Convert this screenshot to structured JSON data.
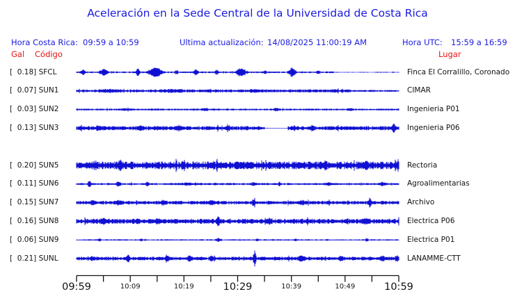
{
  "title": "Aceleración en la Sede Central de la Universidad de Costa Rica",
  "header": {
    "hora_cr_label": "Hora Costa Rica:",
    "hora_cr_value": "09:59 a 10:59",
    "update_label": "Ultima actualización:",
    "update_value": "14/08/2025 11:00:19 AM",
    "hora_utc_label": "Hora UTC:",
    "hora_utc_value": "15:59 a 16:59"
  },
  "columns": {
    "gal_label": "Gal",
    "codigo_label": "Código",
    "lugar_label": "Lugar"
  },
  "colors": {
    "text_blue": "#1a1ae0",
    "label_red": "#e81414",
    "trace_blue": "#1010d2",
    "axis_black": "#111111"
  },
  "chart_data": {
    "type": "line",
    "title": "Aceleración en la Sede Central de la Universidad de Costa Rica",
    "xlabel": "",
    "ylabel": "",
    "x_range_local": [
      "09:59",
      "10:59"
    ],
    "x_range_utc": [
      "15:59",
      "16:59"
    ],
    "grid": false,
    "legend": "none",
    "x_ticks": [
      {
        "label": "09:59",
        "size": "big"
      },
      {
        "label": "10:09",
        "size": "small"
      },
      {
        "label": "10:19",
        "size": "small"
      },
      {
        "label": "10:29",
        "size": "big"
      },
      {
        "label": "10:39",
        "size": "small"
      },
      {
        "label": "10:49",
        "size": "small"
      },
      {
        "label": "10:59",
        "size": "big"
      }
    ],
    "minor_tick_minutes": 5,
    "channels": [
      {
        "slot": 0,
        "gal": "0.18",
        "code": "SFCL",
        "location": "Finca El Corralillo, Coronado",
        "waveform": {
          "seed": 11,
          "base_amp": 0.9,
          "bursts": [
            [
              0.02,
              0.006,
              3.5
            ],
            [
              0.085,
              0.01,
              4.5
            ],
            [
              0.19,
              0.005,
              5.5
            ],
            [
              0.245,
              0.018,
              6.5
            ],
            [
              0.31,
              0.004,
              2.5
            ],
            [
              0.37,
              0.007,
              4
            ],
            [
              0.435,
              0.005,
              3
            ],
            [
              0.51,
              0.012,
              6
            ],
            [
              0.585,
              0.004,
              2.5
            ],
            [
              0.67,
              0.009,
              7
            ],
            [
              0.75,
              0.004,
              2
            ]
          ],
          "quiet": [
            [
              0.8,
              1.0,
              0.45
            ]
          ]
        }
      },
      {
        "slot": 1,
        "gal": "0.07",
        "code": "SUN1",
        "location": "CIMAR",
        "waveform": {
          "seed": 22,
          "base_amp": 1.6,
          "bursts": [
            [
              0.1,
              0.02,
              1.2
            ],
            [
              0.3,
              0.03,
              1.0
            ],
            [
              0.55,
              0.01,
              1.5
            ],
            [
              0.8,
              0.01,
              1.2
            ]
          ],
          "quiet": [
            [
              0.85,
              1.0,
              0.7
            ]
          ]
        }
      },
      {
        "slot": 2,
        "gal": "0.03",
        "code": "SUN2",
        "location": "Ingenieria P01",
        "waveform": {
          "seed": 33,
          "base_amp": 1.0,
          "bursts": [
            [
              0.15,
              0.02,
              0.8
            ],
            [
              0.4,
              0.01,
              1.2
            ],
            [
              0.62,
              0.008,
              1.5
            ],
            [
              0.85,
              0.01,
              1.0
            ]
          ],
          "quiet": []
        }
      },
      {
        "slot": 3,
        "gal": "0.13",
        "code": "SUN3",
        "location": "Ingenieria P06",
        "waveform": {
          "seed": 44,
          "base_amp": 2.2,
          "bursts": [
            [
              0.07,
              0.01,
              1.5
            ],
            [
              0.2,
              0.008,
              2.0
            ],
            [
              0.32,
              0.01,
              2.0
            ],
            [
              0.47,
              0.006,
              2.5
            ],
            [
              0.73,
              0.005,
              2.0
            ],
            [
              0.985,
              0.003,
              7.0
            ]
          ],
          "quiet": [
            [
              0.585,
              0.655,
              0.1
            ]
          ]
        }
      },
      {
        "slot": 5,
        "gal": "0.20",
        "code": "SUN5",
        "location": "Rectoria",
        "waveform": {
          "seed": 55,
          "base_amp": 4.0,
          "bursts": [
            [
              0.06,
              0.005,
              3.0
            ],
            [
              0.135,
              0.004,
              4.0
            ],
            [
              0.33,
              0.005,
              3.0
            ],
            [
              0.5,
              0.004,
              3.0
            ],
            [
              0.77,
              0.006,
              3.0
            ],
            [
              0.9,
              0.005,
              3.0
            ],
            [
              0.99,
              0.004,
              4.0
            ]
          ],
          "quiet": []
        }
      },
      {
        "slot": 6,
        "gal": "0.11",
        "code": "SUN6",
        "location": "Agroalimentarias",
        "waveform": {
          "seed": 66,
          "base_amp": 1.1,
          "bursts": [
            [
              0.04,
              0.005,
              4.0
            ],
            [
              0.13,
              0.006,
              3.0
            ],
            [
              0.22,
              0.005,
              2.5
            ],
            [
              0.35,
              0.03,
              1.0
            ],
            [
              0.55,
              0.006,
              2.0
            ],
            [
              0.63,
              0.005,
              2.0
            ],
            [
              0.78,
              0.01,
              1.5
            ],
            [
              0.95,
              0.008,
              2.0
            ]
          ],
          "quiet": []
        }
      },
      {
        "slot": 7,
        "gal": "0.15",
        "code": "SUN7",
        "location": "Archivo",
        "waveform": {
          "seed": 77,
          "base_amp": 1.9,
          "bursts": [
            [
              0.05,
              0.008,
              2.0
            ],
            [
              0.13,
              0.01,
              2.0
            ],
            [
              0.27,
              0.008,
              2.0
            ],
            [
              0.42,
              0.006,
              2.0
            ],
            [
              0.55,
              0.005,
              3.0
            ],
            [
              0.7,
              0.008,
              2.0
            ],
            [
              0.91,
              0.004,
              5.0
            ]
          ],
          "quiet": []
        }
      },
      {
        "slot": 8,
        "gal": "0.16",
        "code": "SUN8",
        "location": "Electrica P06",
        "waveform": {
          "seed": 88,
          "base_amp": 2.6,
          "bursts": [
            [
              0.08,
              0.01,
              2.0
            ],
            [
              0.25,
              0.008,
              2.0
            ],
            [
              0.44,
              0.004,
              5.0
            ],
            [
              0.6,
              0.006,
              2.0
            ],
            [
              0.9,
              0.01,
              2.5
            ]
          ],
          "quiet": []
        }
      },
      {
        "slot": 9,
        "gal": "0.06",
        "code": "SUN9",
        "location": "Electrica P01",
        "waveform": {
          "seed": 99,
          "base_amp": 0.7,
          "bursts": [
            [
              0.07,
              0.004,
              1.5
            ],
            [
              0.2,
              0.004,
              1.5
            ],
            [
              0.44,
              0.006,
              2.5
            ],
            [
              0.56,
              0.004,
              1.5
            ],
            [
              0.68,
              0.004,
              1.5
            ],
            [
              0.9,
              0.003,
              2.5
            ]
          ],
          "quiet": []
        }
      },
      {
        "slot": 10,
        "gal": "0.21",
        "code": "SUNL",
        "location": "LANAMME-CTT",
        "waveform": {
          "seed": 110,
          "base_amp": 1.9,
          "bursts": [
            [
              0.05,
              0.008,
              2.0
            ],
            [
              0.16,
              0.005,
              3.5
            ],
            [
              0.28,
              0.008,
              2.5
            ],
            [
              0.35,
              0.005,
              3.0
            ],
            [
              0.42,
              0.006,
              3.0
            ],
            [
              0.553,
              0.004,
              10.0
            ],
            [
              0.7,
              0.01,
              3.0
            ],
            [
              0.82,
              0.006,
              2.0
            ],
            [
              0.95,
              0.006,
              3.0
            ],
            [
              0.995,
              0.003,
              4.0
            ]
          ],
          "quiet": []
        }
      }
    ]
  }
}
